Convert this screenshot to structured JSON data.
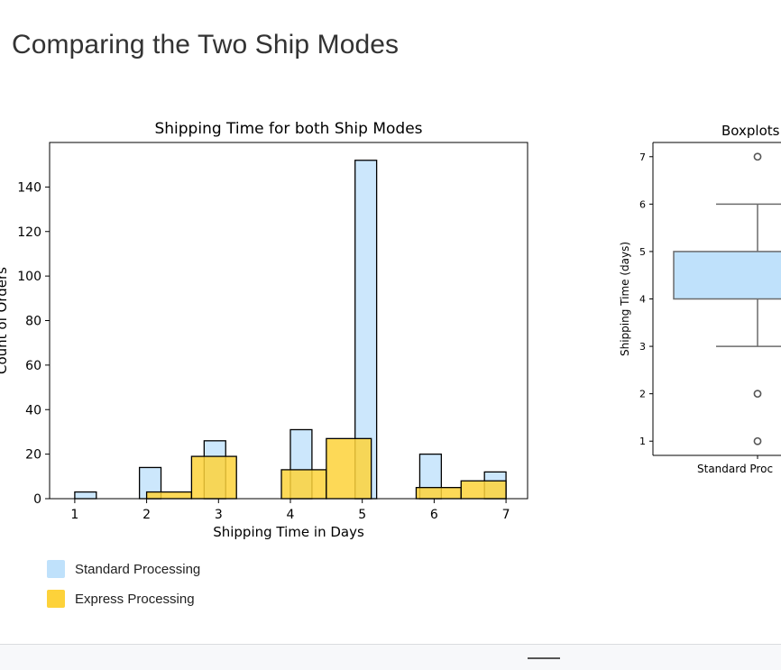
{
  "page": {
    "title": "Comparing the Two Ship Modes"
  },
  "legend": {
    "items": [
      {
        "label": "Standard Processing",
        "color": "#bfe1fb"
      },
      {
        "label": "Express Processing",
        "color": "#fdd23a"
      }
    ]
  },
  "chart_data": [
    {
      "type": "histogram",
      "title": "Shipping Time for both Ship Modes",
      "xlabel": "Shipping Time in Days",
      "ylabel": "Count of Orders",
      "xlim": [
        0.65,
        7.3
      ],
      "ylim": [
        0,
        160
      ],
      "xticks": [
        1,
        2,
        3,
        4,
        5,
        6,
        7
      ],
      "yticks": [
        0,
        20,
        40,
        60,
        80,
        100,
        120,
        140
      ],
      "series": [
        {
          "name": "Standard Processing",
          "color": "#bfe1fb",
          "bins": [
            {
              "x0": 1.0,
              "x1": 1.3,
              "count": 3
            },
            {
              "x0": 1.9,
              "x1": 2.2,
              "count": 14
            },
            {
              "x0": 2.8,
              "x1": 3.1,
              "count": 26
            },
            {
              "x0": 4.0,
              "x1": 4.3,
              "count": 31
            },
            {
              "x0": 4.9,
              "x1": 5.2,
              "count": 152
            },
            {
              "x0": 5.8,
              "x1": 6.1,
              "count": 20
            },
            {
              "x0": 6.7,
              "x1": 7.0,
              "count": 12
            }
          ]
        },
        {
          "name": "Express Processing",
          "color": "#fdd23a",
          "bins": [
            {
              "x0": 2.0,
              "x1": 2.625,
              "count": 3
            },
            {
              "x0": 2.625,
              "x1": 3.25,
              "count": 19
            },
            {
              "x0": 3.875,
              "x1": 4.5,
              "count": 13
            },
            {
              "x0": 4.5,
              "x1": 5.125,
              "count": 27
            },
            {
              "x0": 5.75,
              "x1": 6.375,
              "count": 5
            },
            {
              "x0": 6.375,
              "x1": 7.0,
              "count": 8
            }
          ]
        }
      ]
    },
    {
      "type": "boxplot",
      "title": "Boxplots",
      "xlabel": "",
      "ylabel": "Shipping Time (days)",
      "ylim": [
        0.7,
        7.3
      ],
      "yticks": [
        1,
        2,
        3,
        4,
        5,
        6,
        7
      ],
      "categories": [
        "Standard Proc"
      ],
      "series": [
        {
          "name": "Standard Processing",
          "color": "#bfe1fb",
          "q1": 4,
          "median": 5,
          "q3": 5,
          "whisker_low": 3,
          "whisker_high": 6,
          "outliers": [
            7,
            2,
            1
          ]
        }
      ]
    }
  ]
}
